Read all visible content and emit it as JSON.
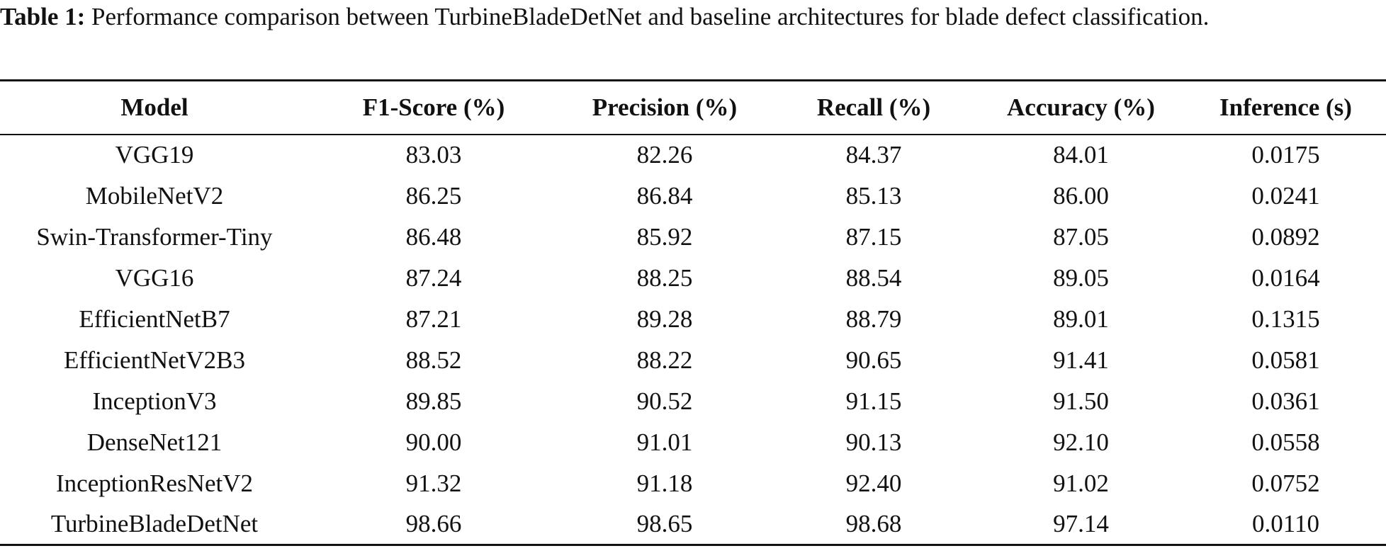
{
  "caption": {
    "label": "Table 1:",
    "text": "Performance comparison between TurbineBladeDetNet and baseline architectures for blade defect classification."
  },
  "table": {
    "header": [
      "Model",
      "F1-Score (%)",
      "Precision (%)",
      "Recall (%)",
      "Accuracy (%)",
      "Inference (s)"
    ],
    "rows": [
      [
        "VGG19",
        "83.03",
        "82.26",
        "84.37",
        "84.01",
        "0.0175"
      ],
      [
        "MobileNetV2",
        "86.25",
        "86.84",
        "85.13",
        "86.00",
        "0.0241"
      ],
      [
        "Swin-Transformer-Tiny",
        "86.48",
        "85.92",
        "87.15",
        "87.05",
        "0.0892"
      ],
      [
        "VGG16",
        "87.24",
        "88.25",
        "88.54",
        "89.05",
        "0.0164"
      ],
      [
        "EfficientNetB7",
        "87.21",
        "89.28",
        "88.79",
        "89.01",
        "0.1315"
      ],
      [
        "EfficientNetV2B3",
        "88.52",
        "88.22",
        "90.65",
        "91.41",
        "0.0581"
      ],
      [
        "InceptionV3",
        "89.85",
        "90.52",
        "91.15",
        "91.50",
        "0.0361"
      ],
      [
        "DenseNet121",
        "90.00",
        "91.01",
        "90.13",
        "92.10",
        "0.0558"
      ],
      [
        "InceptionResNetV2",
        "91.32",
        "91.18",
        "92.40",
        "91.02",
        "0.0752"
      ],
      [
        "TurbineBladeDetNet",
        "98.66",
        "98.65",
        "98.68",
        "97.14",
        "0.0110"
      ]
    ]
  }
}
